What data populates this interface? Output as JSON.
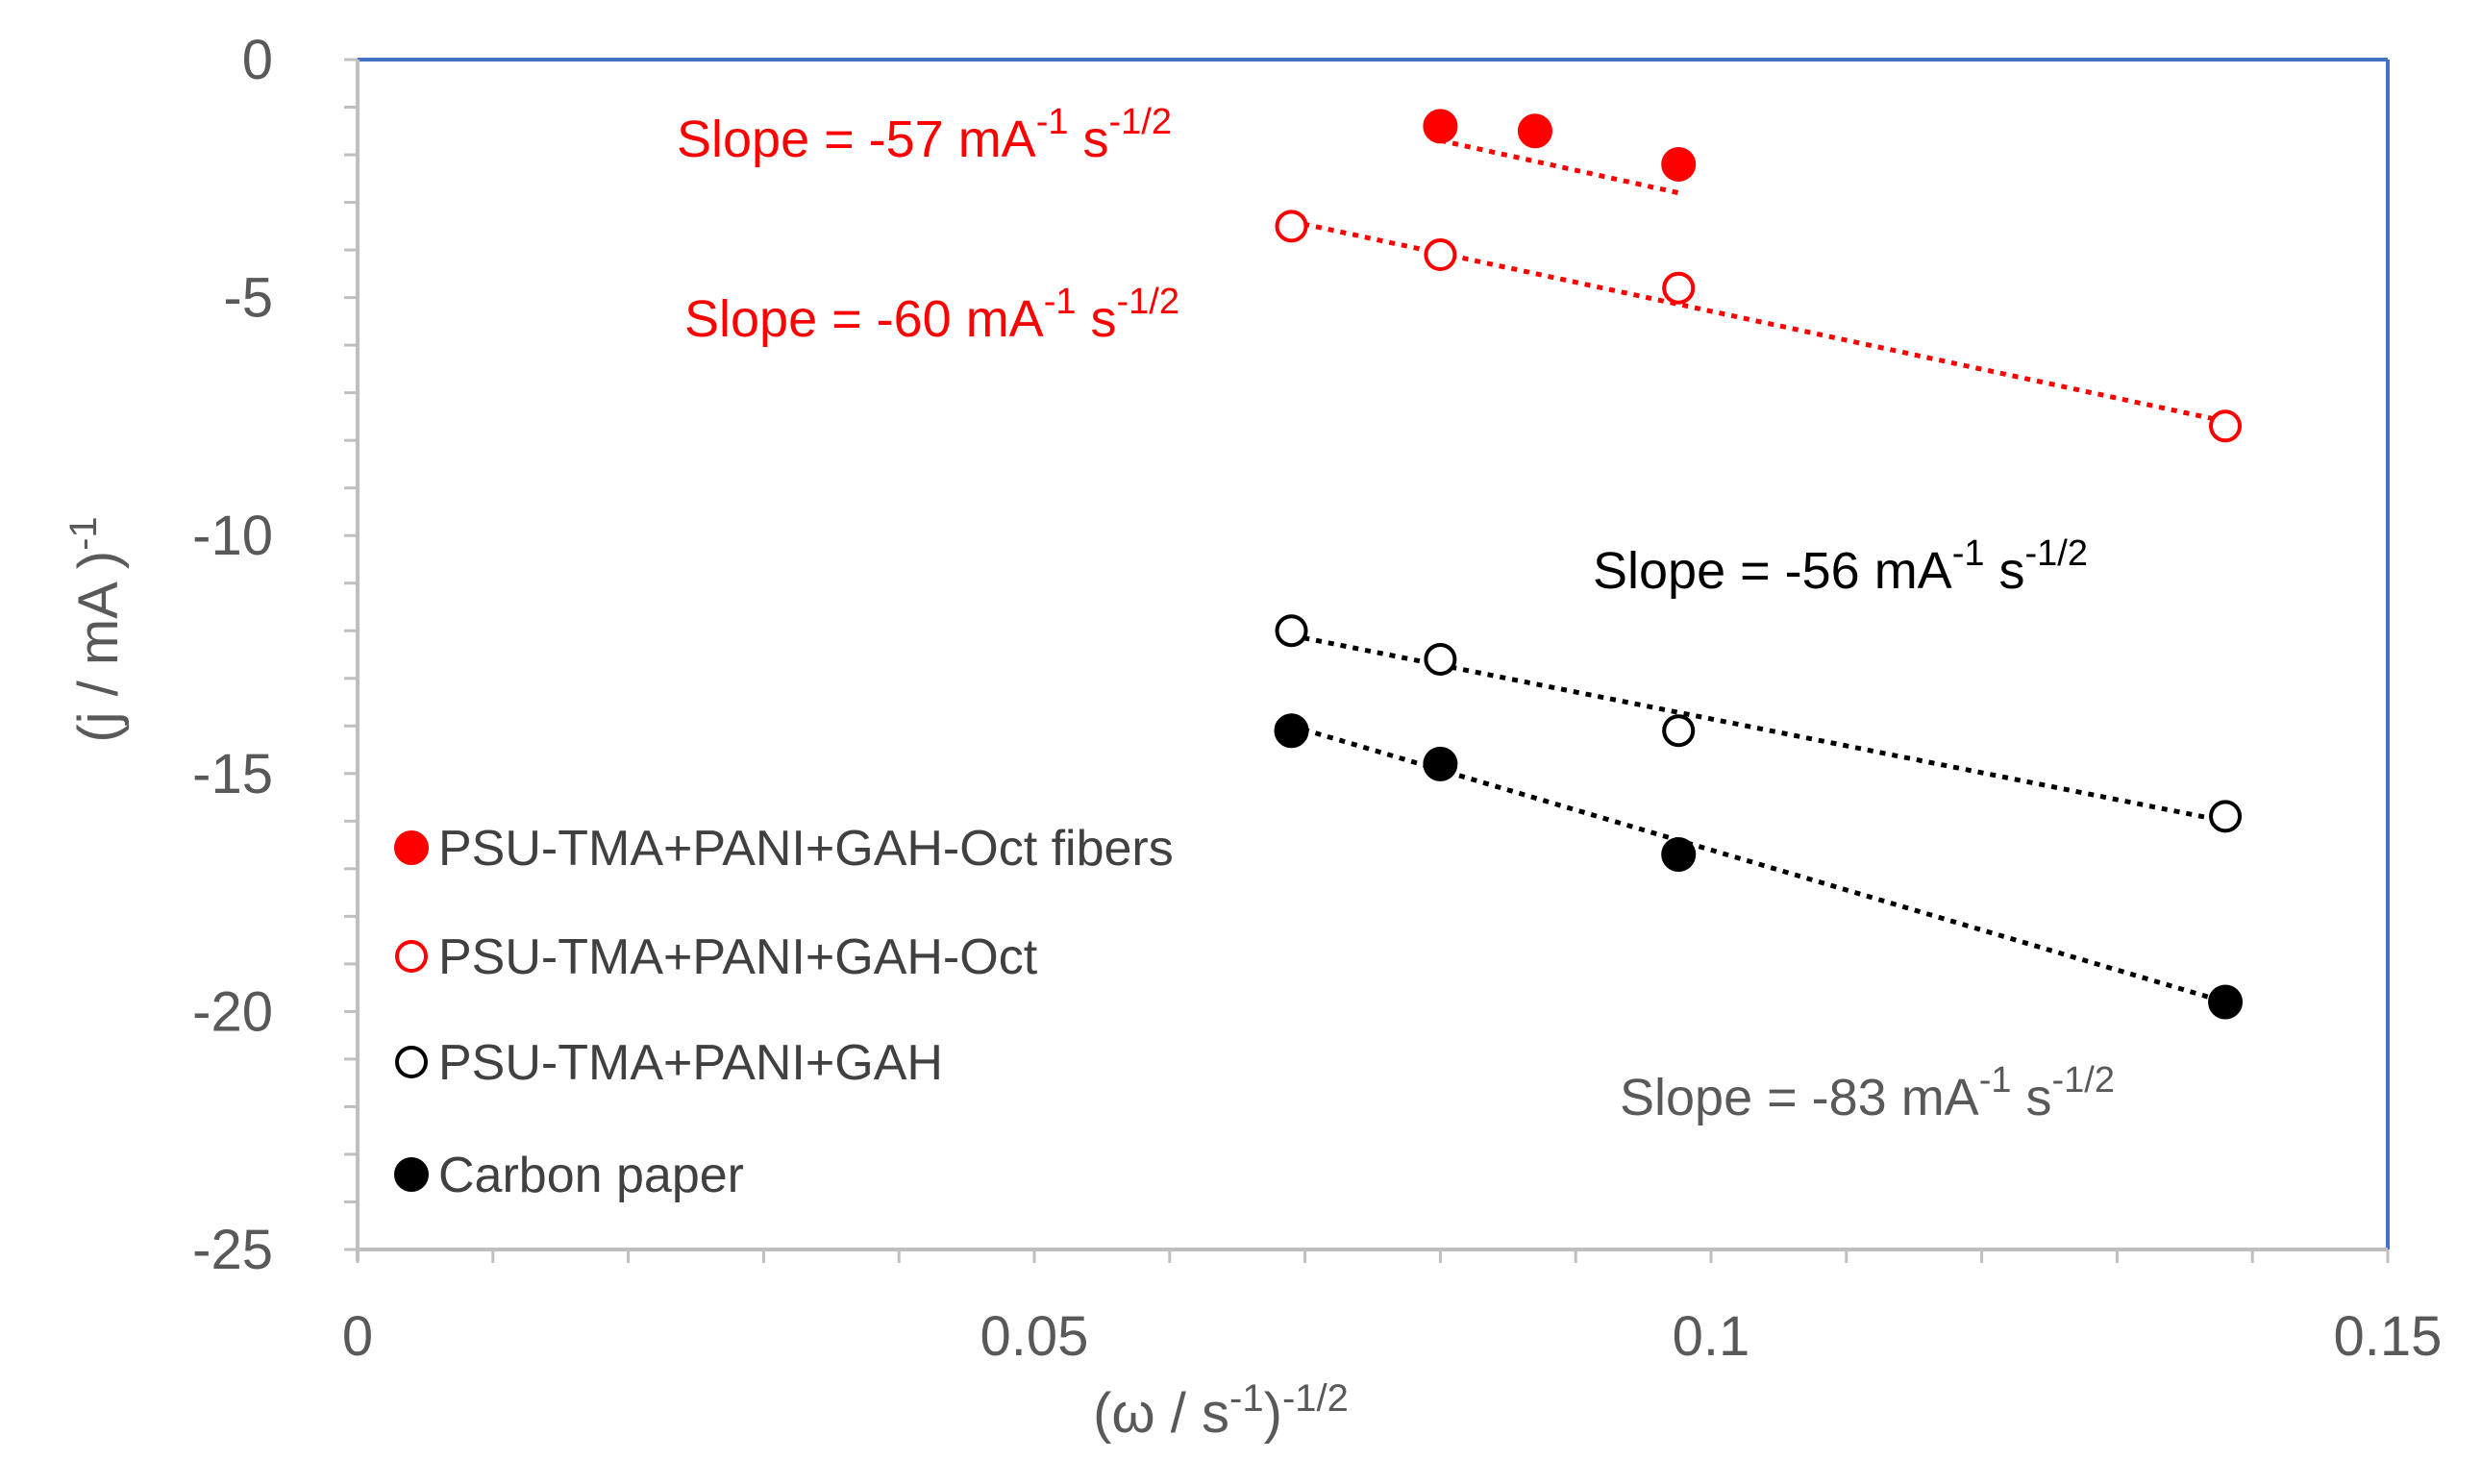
{
  "chart_data": {
    "type": "scatter",
    "title": "",
    "xlabel": {
      "base": "(ω / s",
      "sup1": "-1",
      "mid": ")",
      "sup2": "-1/2"
    },
    "ylabel": {
      "base": "(j / mA )",
      "sup": "-1"
    },
    "xlim": [
      0,
      0.15
    ],
    "ylim": [
      -25,
      0
    ],
    "xticks": [
      0,
      0.05,
      0.1,
      0.15
    ],
    "xtick_labels": [
      "0",
      "0.05",
      "0.1",
      "0.15"
    ],
    "xminor_step": 0.01,
    "yticks": [
      0,
      -5,
      -10,
      -15,
      -20,
      -25
    ],
    "ytick_labels": [
      "0",
      "-5",
      "-10",
      "-15",
      "-20",
      "-25"
    ],
    "yminor_step": 1,
    "grid": false,
    "legend_position": "bottom-left inside",
    "series": [
      {
        "name": "PSU-TMA+PANI+GAH-Oct fibers",
        "color": "#ff0000",
        "marker": "filled-circle",
        "x": [
          0.08,
          0.087,
          0.0976
        ],
        "y": [
          -1.4,
          -1.5,
          -2.2
        ],
        "trendline": {
          "x": [
            0.08,
            0.0976
          ],
          "y": [
            -1.7,
            -2.8
          ]
        }
      },
      {
        "name": "PSU-TMA+PANI+GAH-Oct",
        "color": "#ff0000",
        "marker": "open-circle",
        "x": [
          0.069,
          0.08,
          0.0976,
          0.138
        ],
        "y": [
          -3.5,
          -4.1,
          -4.8,
          -7.7
        ],
        "trendline": {
          "x": [
            0.069,
            0.138
          ],
          "y": [
            -3.4,
            -7.6
          ]
        }
      },
      {
        "name": "PSU-TMA+PANI+GAH",
        "color": "#000000",
        "marker": "open-circle",
        "x": [
          0.069,
          0.08,
          0.0976,
          0.138
        ],
        "y": [
          -12.0,
          -12.6,
          -14.1,
          -15.9
        ],
        "trendline": {
          "x": [
            0.069,
            0.138
          ],
          "y": [
            -12.1,
            -16.0
          ]
        }
      },
      {
        "name": "Carbon paper",
        "color": "#000000",
        "marker": "filled-circle",
        "x": [
          0.069,
          0.08,
          0.0976,
          0.138
        ],
        "y": [
          -14.1,
          -14.8,
          -16.7,
          -19.8
        ],
        "trendline": {
          "x": [
            0.069,
            0.138
          ],
          "y": [
            -14.0,
            -19.8
          ]
        }
      }
    ],
    "annotations": [
      {
        "text": "Slope = -57 mA",
        "sup1": "-1",
        "mid": " s",
        "sup2": "-1/2",
        "color": "#ff0000"
      },
      {
        "text": "Slope = -60 mA",
        "sup1": "-1",
        "mid": " s",
        "sup2": "-1/2",
        "color": "#ff0000"
      },
      {
        "text": "Slope = -56 mA",
        "sup1": "-1",
        "mid": "  s",
        "sup2": "-1/2",
        "color": "#000000"
      },
      {
        "text": "Slope = -83 mA",
        "sup1": "-1",
        "mid": " s",
        "sup2": "-1/2",
        "color": "#595959"
      }
    ],
    "colors": {
      "axis_right_top": "#4472c4",
      "axis": "#bfbfbf",
      "text": "#595959"
    }
  }
}
